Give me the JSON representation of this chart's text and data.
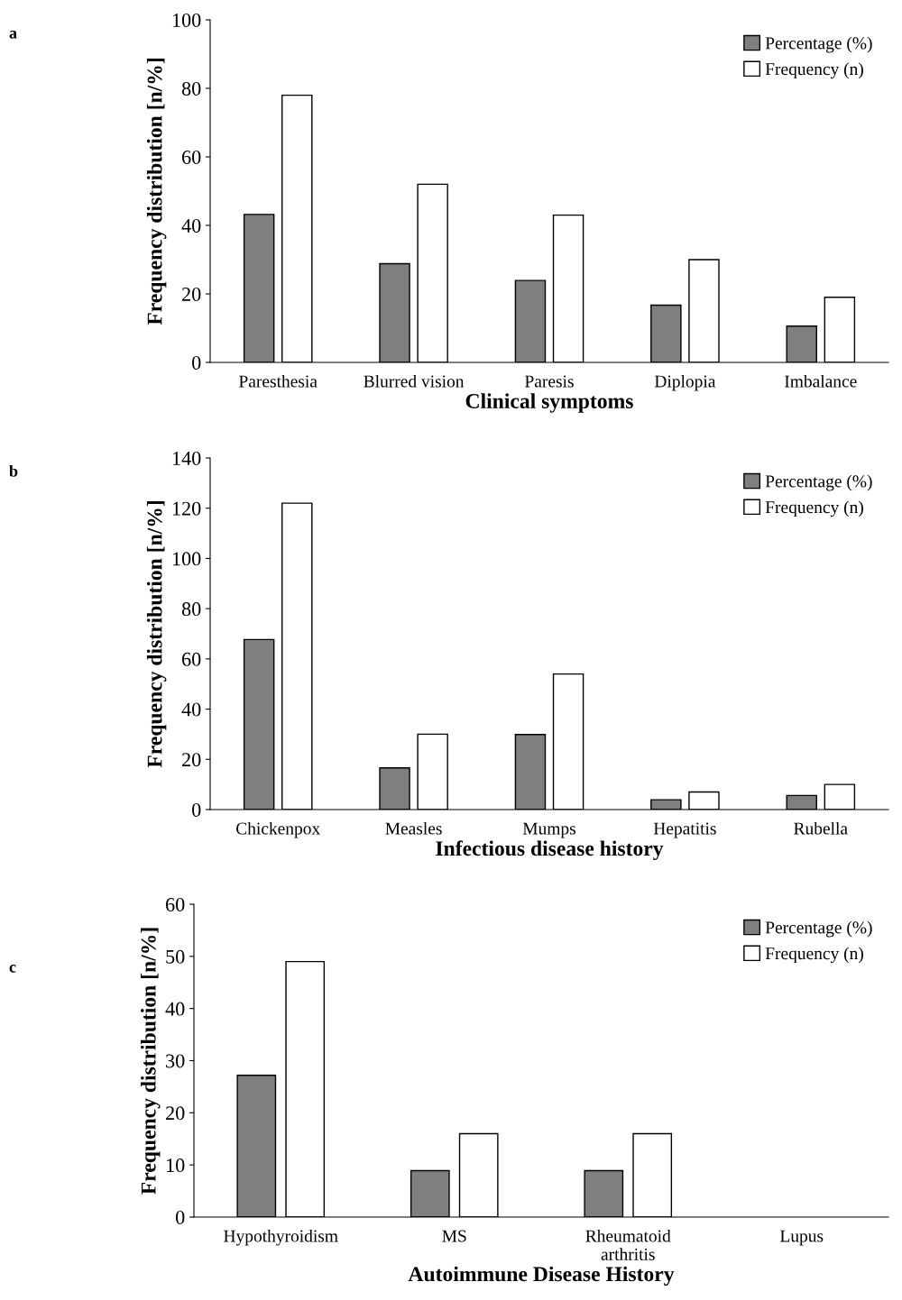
{
  "chart_data": [
    {
      "type": "bar",
      "annotations": [
        "a"
      ],
      "xlabel": "Clinical symptoms",
      "ylabel": "Frequency distribution [n/%]",
      "categories": [
        "Paresthesia",
        "Blurred vision",
        "Paresis",
        "Diplopia",
        "Imbalance"
      ],
      "series": [
        {
          "name": "Percentage (%)",
          "color": "#7f7f7f",
          "values": [
            43.2,
            28.8,
            23.9,
            16.7,
            10.6
          ]
        },
        {
          "name": "Frequency (n)",
          "color": "#ffffff",
          "values": [
            78,
            52,
            43,
            30,
            19
          ]
        }
      ],
      "ylim": [
        0,
        100
      ],
      "yticks": [
        0,
        20,
        40,
        60,
        80,
        100
      ],
      "legend": "top right"
    },
    {
      "type": "bar",
      "annotations": [
        "b"
      ],
      "xlabel": "Infectious disease history",
      "ylabel": "Frequency distribution [n/%]",
      "categories": [
        "Chickenpox",
        "Measles",
        "Mumps",
        "Hepatitis",
        "Rubella"
      ],
      "series": [
        {
          "name": "Percentage (%)",
          "color": "#7f7f7f",
          "values": [
            67.7,
            16.6,
            29.9,
            3.9,
            5.6
          ]
        },
        {
          "name": "Frequency (n)",
          "color": "#ffffff",
          "values": [
            122,
            30,
            54,
            7,
            10
          ]
        }
      ],
      "ylim": [
        0,
        140
      ],
      "yticks": [
        0,
        20,
        40,
        60,
        80,
        100,
        120,
        140
      ],
      "legend": "top right"
    },
    {
      "type": "bar",
      "annotations": [
        "c"
      ],
      "xlabel": "Autoimmune Disease History",
      "ylabel": "Frequency distribution [n/%]",
      "categories": [
        "Hypothyroidism",
        "MS",
        "Rheumatoid\narthritis",
        "Lupus"
      ],
      "series": [
        {
          "name": "Percentage (%)",
          "color": "#7f7f7f",
          "values": [
            27.2,
            8.9,
            8.9,
            0
          ]
        },
        {
          "name": "Frequency (n)",
          "color": "#ffffff",
          "values": [
            49,
            16,
            16,
            0
          ]
        }
      ],
      "ylim": [
        0,
        60
      ],
      "yticks": [
        0,
        10,
        20,
        30,
        40,
        50,
        60
      ],
      "legend": "top right"
    }
  ]
}
